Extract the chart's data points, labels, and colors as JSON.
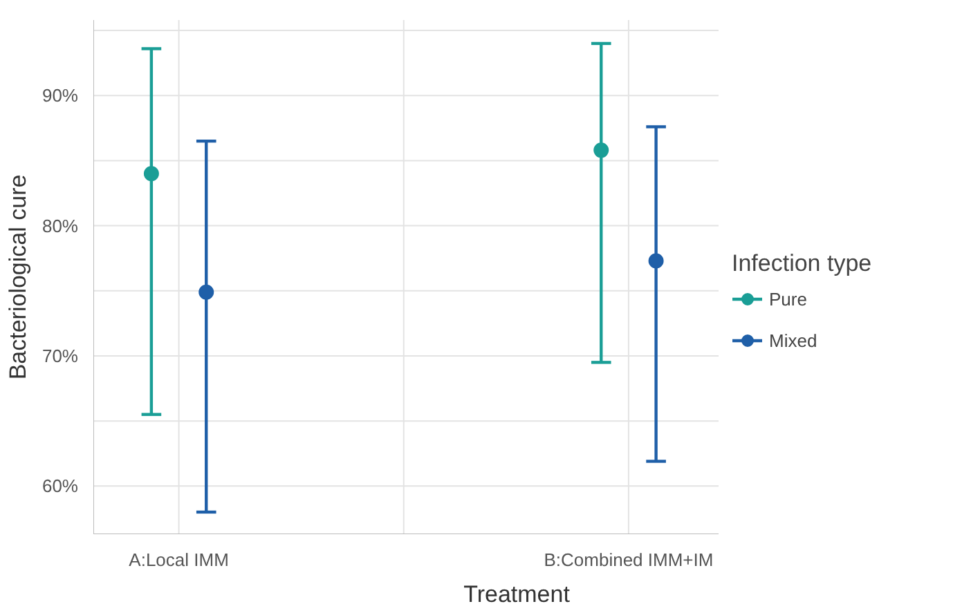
{
  "chart_data": {
    "type": "scatter",
    "xlabel": "Treatment",
    "ylabel": "Bacteriological cure",
    "legend_title": "Infection type",
    "categories": [
      "A:Local IMM",
      "B:Combined IMM+IM"
    ],
    "series": [
      {
        "name": "Pure",
        "color": "#1a9e96",
        "values": [
          84.0,
          85.8
        ],
        "errors": [
          [
            65.5,
            93.6
          ],
          [
            69.5,
            94.0
          ]
        ]
      },
      {
        "name": "Mixed",
        "color": "#1f5fa8",
        "values": [
          74.9,
          77.3
        ],
        "errors": [
          [
            58.0,
            86.5
          ],
          [
            61.9,
            87.6
          ]
        ]
      }
    ],
    "ylim": [
      56.3,
      95.8
    ],
    "yticks": [
      {
        "value": 60,
        "label": "60%"
      },
      {
        "value": 70,
        "label": "70%"
      },
      {
        "value": 80,
        "label": "80%"
      },
      {
        "value": 90,
        "label": "90%"
      }
    ],
    "grid": true,
    "legend": "right",
    "marker": "circle"
  }
}
